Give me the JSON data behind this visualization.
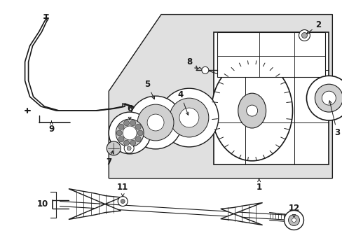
{
  "bg_color": "#ffffff",
  "dark": "#1a1a1a",
  "gray_fill": "#d8d8d8",
  "light_fill": "#f0f0f0",
  "figsize": [
    4.89,
    3.6
  ],
  "dpi": 100
}
